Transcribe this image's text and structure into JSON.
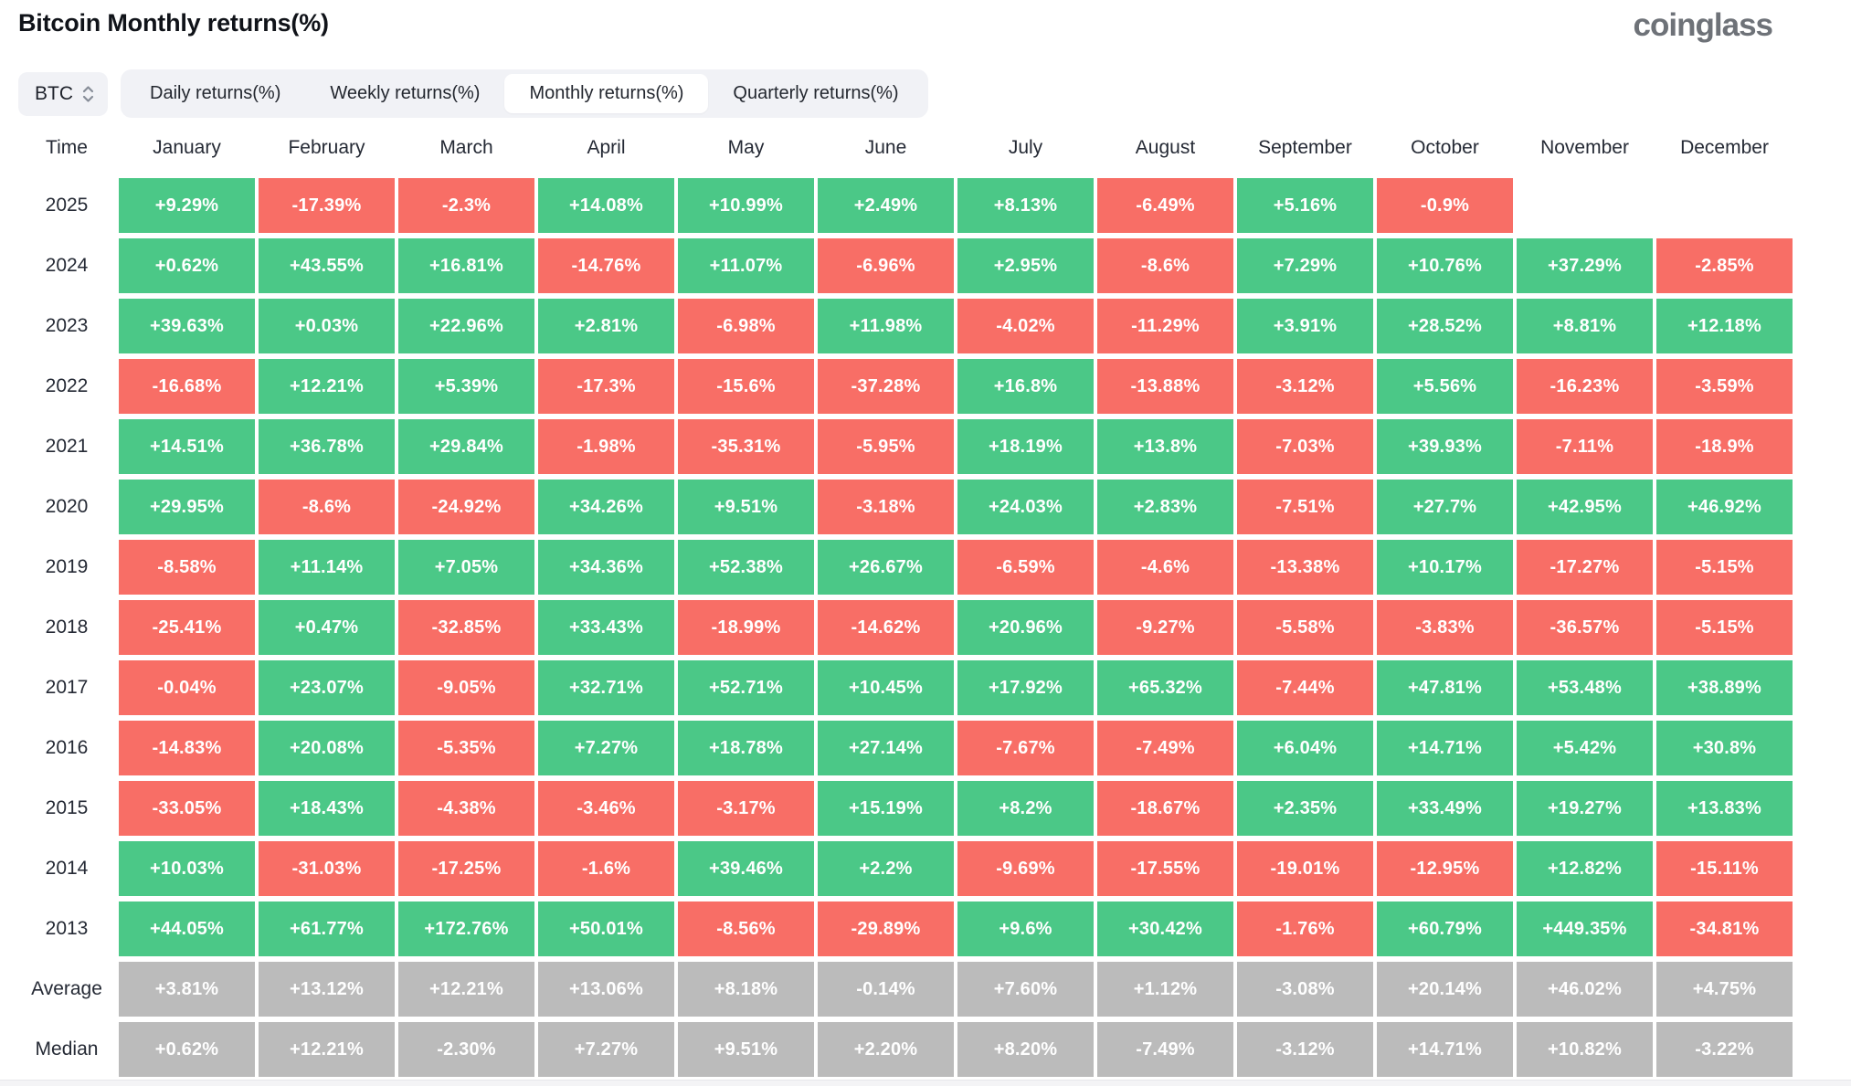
{
  "page": {
    "title": "Bitcoin Monthly returns(%)",
    "brand": "coinglass"
  },
  "controls": {
    "coin_selector": {
      "value": "BTC",
      "icon": "up-down-chevron-icon"
    },
    "tabs": [
      {
        "label": "Daily returns(%)",
        "active": false
      },
      {
        "label": "Weekly returns(%)",
        "active": false
      },
      {
        "label": "Monthly returns(%)",
        "active": true
      },
      {
        "label": "Quarterly returns(%)",
        "active": false
      }
    ]
  },
  "colors": {
    "positive": "#4bc887",
    "negative": "#f86e66",
    "summary": "#bbbbbb",
    "control_bg": "#f1f2f6",
    "text_dark": "#252a35"
  },
  "chart_data": {
    "type": "heatmap",
    "title": "Bitcoin Monthly returns(%)",
    "unit": "%",
    "color_rule": "green = positive monthly return, red = negative monthly return, gray = summary rows (Average/Median), blank = no data yet",
    "columns": [
      "Time",
      "January",
      "February",
      "March",
      "April",
      "May",
      "June",
      "July",
      "August",
      "September",
      "October",
      "November",
      "December"
    ],
    "rows": [
      {
        "label": "2025",
        "type": "year",
        "values": [
          "+9.29%",
          "-17.39%",
          "-2.3%",
          "+14.08%",
          "+10.99%",
          "+2.49%",
          "+8.13%",
          "-6.49%",
          "+5.16%",
          "-0.9%",
          null,
          null
        ]
      },
      {
        "label": "2024",
        "type": "year",
        "values": [
          "+0.62%",
          "+43.55%",
          "+16.81%",
          "-14.76%",
          "+11.07%",
          "-6.96%",
          "+2.95%",
          "-8.6%",
          "+7.29%",
          "+10.76%",
          "+37.29%",
          "-2.85%"
        ]
      },
      {
        "label": "2023",
        "type": "year",
        "values": [
          "+39.63%",
          "+0.03%",
          "+22.96%",
          "+2.81%",
          "-6.98%",
          "+11.98%",
          "-4.02%",
          "-11.29%",
          "+3.91%",
          "+28.52%",
          "+8.81%",
          "+12.18%"
        ]
      },
      {
        "label": "2022",
        "type": "year",
        "values": [
          "-16.68%",
          "+12.21%",
          "+5.39%",
          "-17.3%",
          "-15.6%",
          "-37.28%",
          "+16.8%",
          "-13.88%",
          "-3.12%",
          "+5.56%",
          "-16.23%",
          "-3.59%"
        ]
      },
      {
        "label": "2021",
        "type": "year",
        "values": [
          "+14.51%",
          "+36.78%",
          "+29.84%",
          "-1.98%",
          "-35.31%",
          "-5.95%",
          "+18.19%",
          "+13.8%",
          "-7.03%",
          "+39.93%",
          "-7.11%",
          "-18.9%"
        ]
      },
      {
        "label": "2020",
        "type": "year",
        "values": [
          "+29.95%",
          "-8.6%",
          "-24.92%",
          "+34.26%",
          "+9.51%",
          "-3.18%",
          "+24.03%",
          "+2.83%",
          "-7.51%",
          "+27.7%",
          "+42.95%",
          "+46.92%"
        ]
      },
      {
        "label": "2019",
        "type": "year",
        "values": [
          "-8.58%",
          "+11.14%",
          "+7.05%",
          "+34.36%",
          "+52.38%",
          "+26.67%",
          "-6.59%",
          "-4.6%",
          "-13.38%",
          "+10.17%",
          "-17.27%",
          "-5.15%"
        ]
      },
      {
        "label": "2018",
        "type": "year",
        "values": [
          "-25.41%",
          "+0.47%",
          "-32.85%",
          "+33.43%",
          "-18.99%",
          "-14.62%",
          "+20.96%",
          "-9.27%",
          "-5.58%",
          "-3.83%",
          "-36.57%",
          "-5.15%"
        ]
      },
      {
        "label": "2017",
        "type": "year",
        "values": [
          "-0.04%",
          "+23.07%",
          "-9.05%",
          "+32.71%",
          "+52.71%",
          "+10.45%",
          "+17.92%",
          "+65.32%",
          "-7.44%",
          "+47.81%",
          "+53.48%",
          "+38.89%"
        ]
      },
      {
        "label": "2016",
        "type": "year",
        "values": [
          "-14.83%",
          "+20.08%",
          "-5.35%",
          "+7.27%",
          "+18.78%",
          "+27.14%",
          "-7.67%",
          "-7.49%",
          "+6.04%",
          "+14.71%",
          "+5.42%",
          "+30.8%"
        ]
      },
      {
        "label": "2015",
        "type": "year",
        "values": [
          "-33.05%",
          "+18.43%",
          "-4.38%",
          "-3.46%",
          "-3.17%",
          "+15.19%",
          "+8.2%",
          "-18.67%",
          "+2.35%",
          "+33.49%",
          "+19.27%",
          "+13.83%"
        ]
      },
      {
        "label": "2014",
        "type": "year",
        "values": [
          "+10.03%",
          "-31.03%",
          "-17.25%",
          "-1.6%",
          "+39.46%",
          "+2.2%",
          "-9.69%",
          "-17.55%",
          "-19.01%",
          "-12.95%",
          "+12.82%",
          "-15.11%"
        ]
      },
      {
        "label": "2013",
        "type": "year",
        "values": [
          "+44.05%",
          "+61.77%",
          "+172.76%",
          "+50.01%",
          "-8.56%",
          "-29.89%",
          "+9.6%",
          "+30.42%",
          "-1.76%",
          "+60.79%",
          "+449.35%",
          "-34.81%"
        ]
      },
      {
        "label": "Average",
        "type": "summary",
        "values": [
          "+3.81%",
          "+13.12%",
          "+12.21%",
          "+13.06%",
          "+8.18%",
          "-0.14%",
          "+7.60%",
          "+1.12%",
          "-3.08%",
          "+20.14%",
          "+46.02%",
          "+4.75%"
        ]
      },
      {
        "label": "Median",
        "type": "summary",
        "values": [
          "+0.62%",
          "+12.21%",
          "-2.30%",
          "+7.27%",
          "+9.51%",
          "+2.20%",
          "+8.20%",
          "-7.49%",
          "-3.12%",
          "+14.71%",
          "+10.82%",
          "-3.22%"
        ]
      }
    ]
  }
}
